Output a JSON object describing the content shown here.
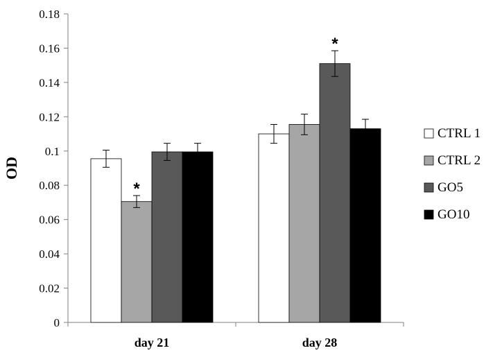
{
  "chart_data": {
    "type": "bar",
    "title": "",
    "xlabel": "",
    "ylabel": "OD",
    "ylim": [
      0,
      0.18
    ],
    "y_ticks": [
      "0",
      "0.02",
      "0.04",
      "0.06",
      "0.08",
      "0.1",
      "0.12",
      "0.14",
      "0.16",
      "0.18"
    ],
    "categories": [
      "day 21",
      "day 28"
    ],
    "series": [
      {
        "name": "CTRL 1",
        "color": "#ffffff",
        "values": [
          0.0955,
          0.11
        ],
        "errors": [
          0.005,
          0.0055
        ]
      },
      {
        "name": "CTRL 2",
        "color": "#a6a6a6",
        "values": [
          0.0705,
          0.1155
        ],
        "errors": [
          0.0035,
          0.006
        ]
      },
      {
        "name": "GO5",
        "color": "#595959",
        "values": [
          0.0995,
          0.151
        ],
        "errors": [
          0.005,
          0.0075
        ]
      },
      {
        "name": "GO10",
        "color": "#000000",
        "values": [
          0.0995,
          0.113
        ],
        "errors": [
          0.005,
          0.0055
        ]
      }
    ],
    "significance": [
      {
        "category": "day 21",
        "series": "CTRL 2",
        "label": "*"
      },
      {
        "category": "day 28",
        "series": "GO5",
        "label": "*"
      }
    ],
    "grid": false,
    "legend_position": "right"
  }
}
